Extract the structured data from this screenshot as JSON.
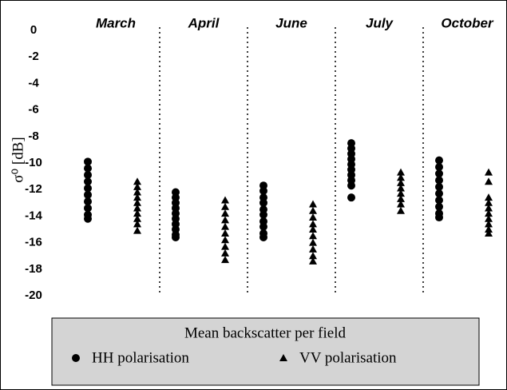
{
  "chart_data": {
    "type": "strip",
    "ylabel": "σ⁰ [dB]",
    "categories": [
      "March",
      "April",
      "June",
      "July",
      "October"
    ],
    "ylim": [
      0,
      -20
    ],
    "yticks": [
      0,
      -2,
      -4,
      -6,
      -8,
      -10,
      -12,
      -14,
      -16,
      -18,
      -20
    ],
    "legend_title": "Mean backscatter per field",
    "series": [
      {
        "name": "HH polarisation",
        "marker": "circle",
        "color": "#000000",
        "values": [
          [
            -9.9,
            -10.4,
            -10.9,
            -11.4,
            -11.9,
            -12.4,
            -12.9,
            -13.4,
            -13.9,
            -14.2
          ],
          [
            -12.2,
            -12.6,
            -13.0,
            -13.4,
            -13.8,
            -14.2,
            -14.6,
            -15.0,
            -15.4,
            -15.6
          ],
          [
            -11.7,
            -12.1,
            -12.6,
            -13.0,
            -13.5,
            -13.9,
            -14.4,
            -14.8,
            -15.3,
            -15.6
          ],
          [
            -8.5,
            -8.9,
            -9.3,
            -9.7,
            -10.1,
            -10.5,
            -10.9,
            -11.3,
            -11.7,
            -12.6
          ],
          [
            -9.8,
            -10.3,
            -10.8,
            -11.3,
            -11.8,
            -12.3,
            -12.8,
            -13.3,
            -13.8,
            -14.1
          ]
        ]
      },
      {
        "name": "VV polarisation",
        "marker": "triangle",
        "color": "#000000",
        "values": [
          [
            -11.4,
            -11.8,
            -12.2,
            -12.6,
            -13.0,
            -13.4,
            -13.8,
            -14.2,
            -14.6,
            -15.1
          ],
          [
            -12.8,
            -13.3,
            -13.8,
            -14.3,
            -14.8,
            -15.3,
            -15.8,
            -16.3,
            -16.8,
            -17.3
          ],
          [
            -13.1,
            -13.6,
            -14.1,
            -14.6,
            -15.0,
            -15.5,
            -16.0,
            -16.5,
            -17.0,
            -17.4
          ],
          [
            -10.7,
            -11.1,
            -11.5,
            -11.9,
            -12.3,
            -12.7,
            -13.1,
            -13.6
          ],
          [
            -10.7,
            -11.4,
            -12.6,
            -13.0,
            -13.4,
            -13.8,
            -14.2,
            -14.6,
            -15.0,
            -15.3
          ]
        ]
      }
    ]
  }
}
